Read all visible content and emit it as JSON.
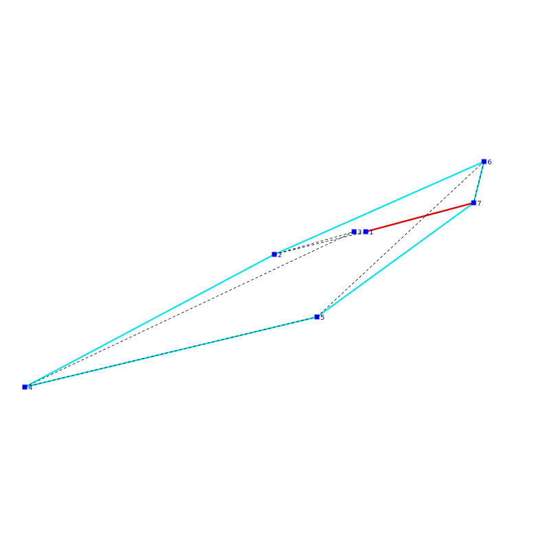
{
  "colors": {
    "background": "#ffffff",
    "hull_edge": "#00e5ee",
    "highlight_edge": "#e00000",
    "diagonal": "#000000",
    "vertex_fill": "#0000ff",
    "label": "#0000aa"
  },
  "graph": {
    "vertices": [
      {
        "id": "1",
        "label": "1"
      },
      {
        "id": "2",
        "label": "2"
      },
      {
        "id": "3",
        "label": "3"
      },
      {
        "id": "4",
        "label": "4"
      },
      {
        "id": "5",
        "label": "5"
      },
      {
        "id": "6",
        "label": "6"
      },
      {
        "id": "7",
        "label": "7"
      }
    ],
    "hull_edges": [
      [
        "4",
        "2"
      ],
      [
        "2",
        "6"
      ],
      [
        "6",
        "7"
      ],
      [
        "7",
        "5"
      ],
      [
        "5",
        "4"
      ]
    ],
    "highlight_edges": [
      [
        "1",
        "7"
      ]
    ],
    "dashed_edges": [
      [
        "2",
        "3"
      ],
      [
        "2",
        "1"
      ],
      [
        "4",
        "3"
      ],
      [
        "4",
        "5"
      ],
      [
        "5",
        "6"
      ],
      [
        "6",
        "7"
      ]
    ]
  }
}
